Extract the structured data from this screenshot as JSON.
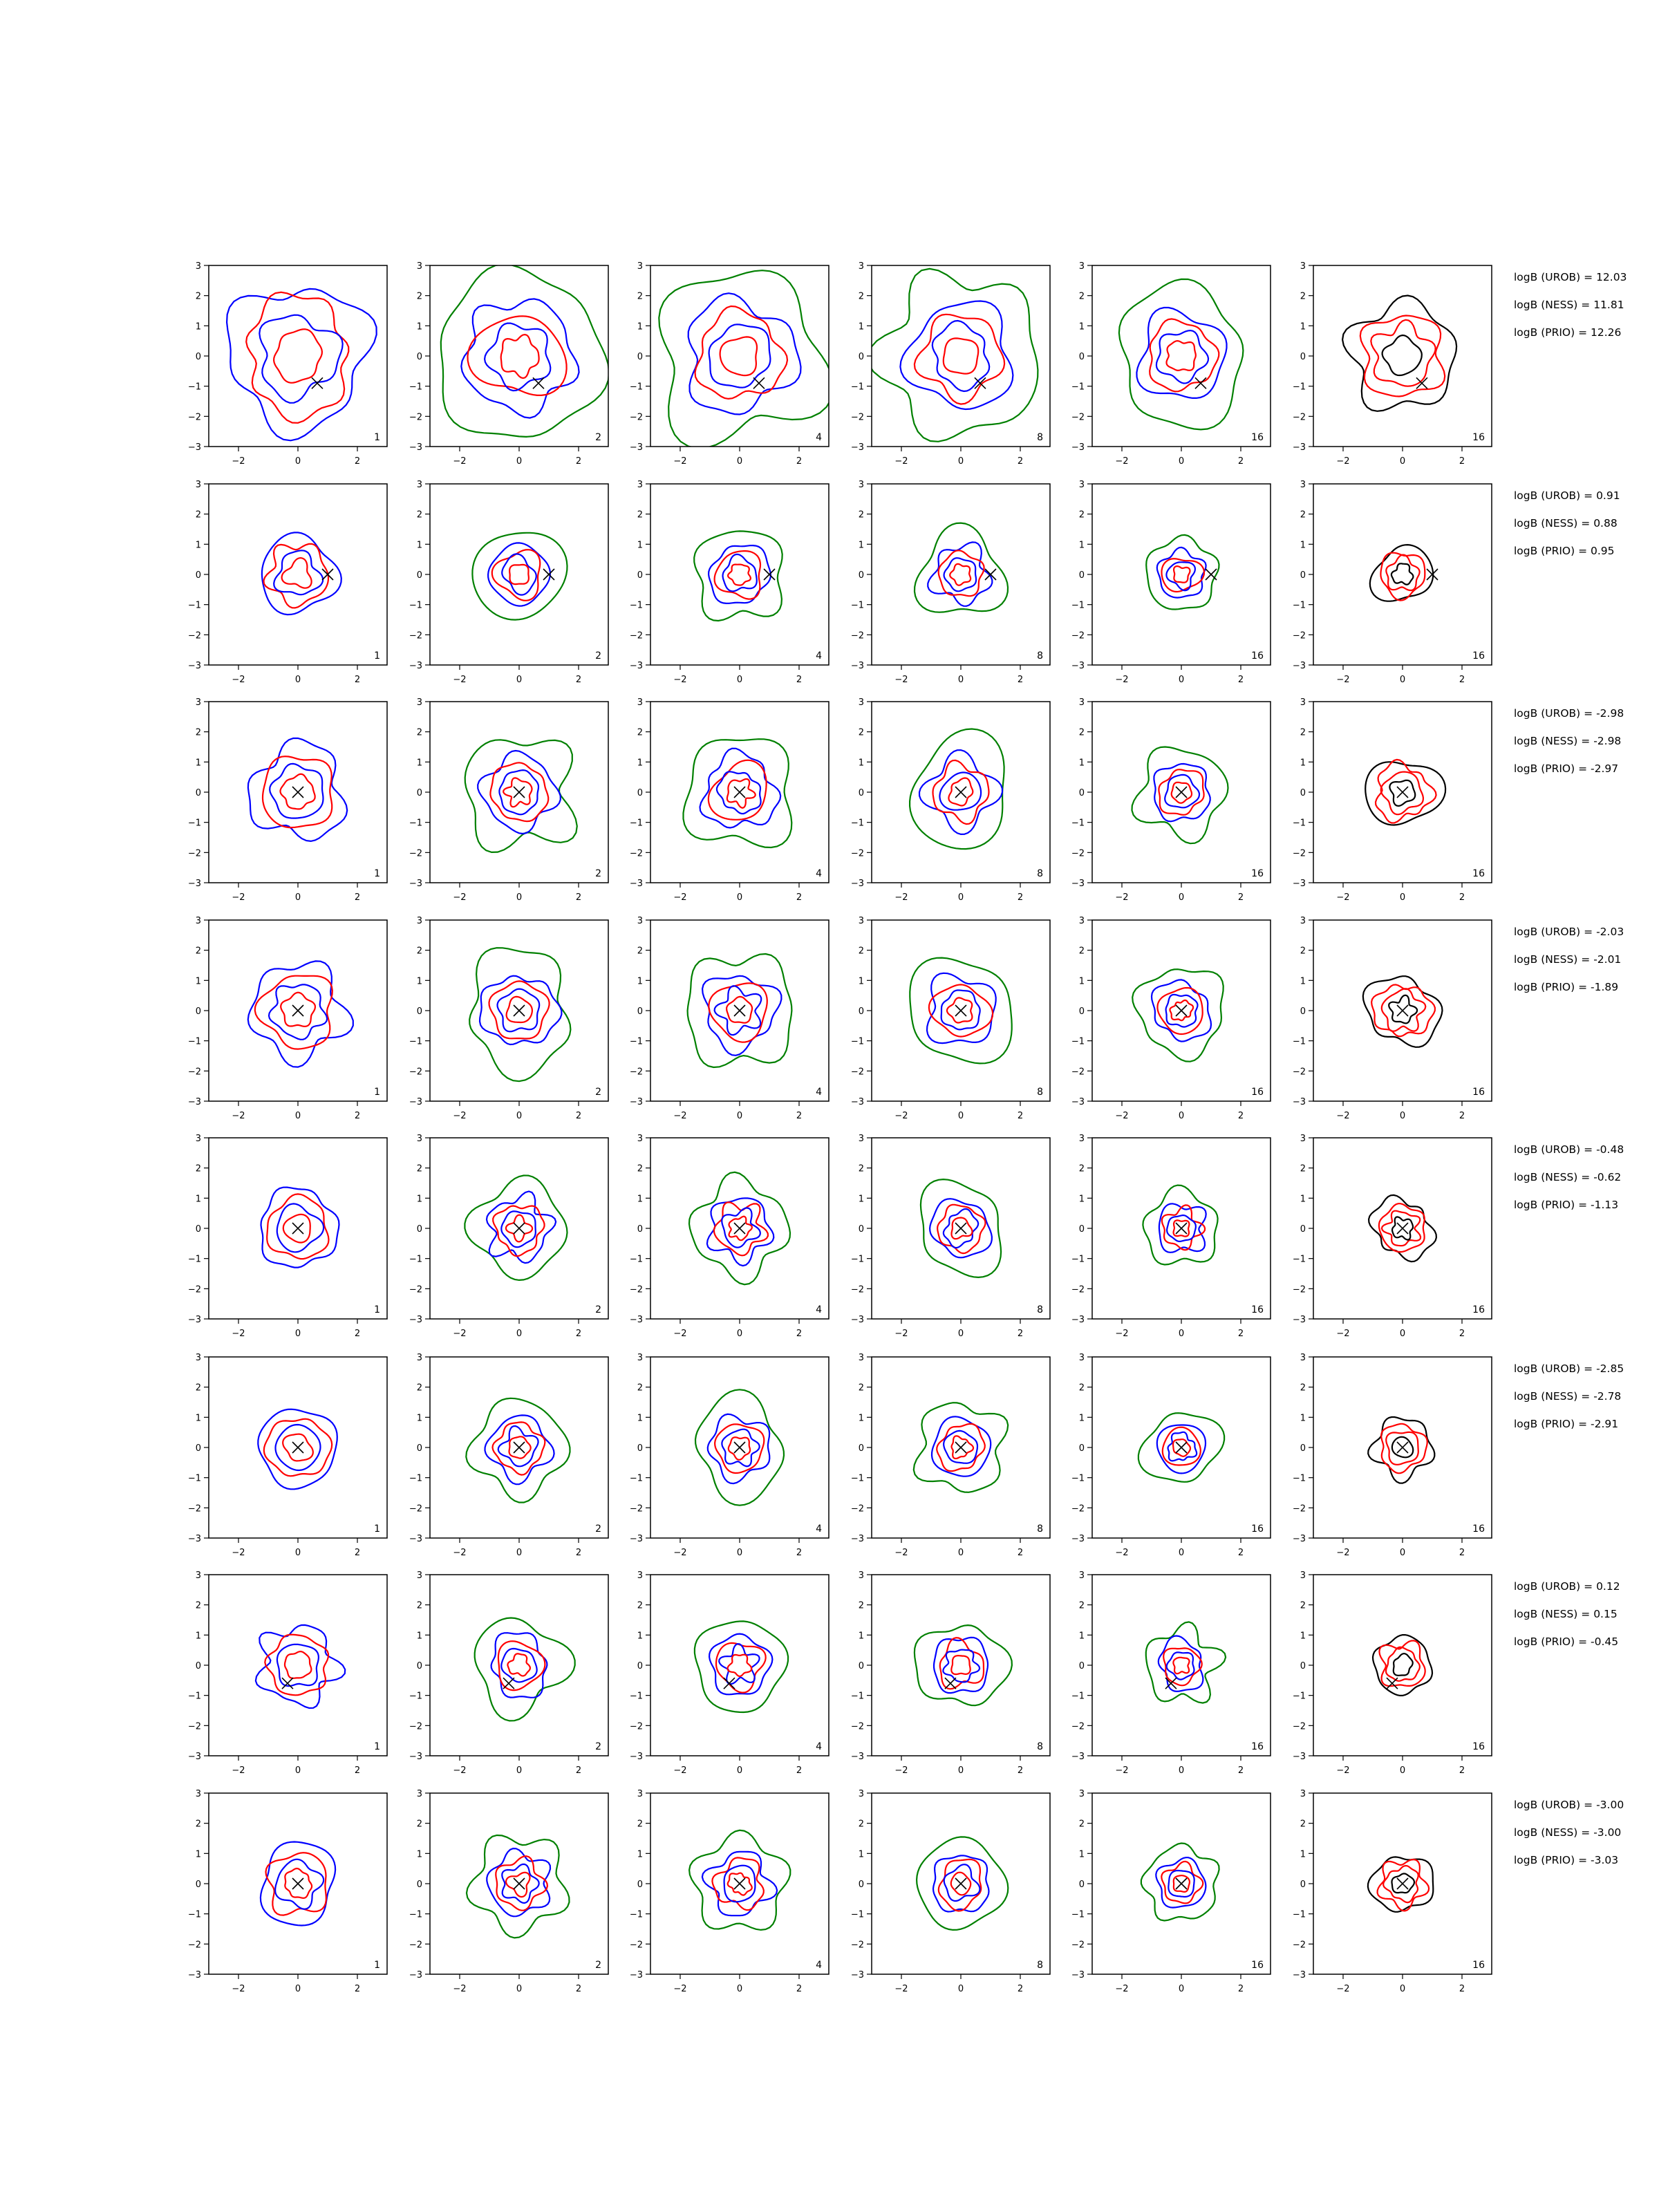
{
  "chart_data": {
    "type": "contour",
    "grid": "6 columns x 8 rows of contour panels",
    "xlim": [
      -3,
      3
    ],
    "ylim": [
      -3,
      3
    ],
    "xticks": [
      -2,
      0,
      2
    ],
    "yticks": [
      3,
      2,
      1,
      0,
      -1,
      -2,
      -3
    ],
    "grid_lines": false,
    "legend": "none",
    "line_colors": [
      "#0000ff",
      "#008000",
      "#ff0000",
      "#000000"
    ],
    "marker": "x",
    "column_labels": [
      "1",
      "2",
      "4",
      "8",
      "16",
      "16"
    ],
    "rows": [
      {
        "marker": [
          0.65,
          -0.9
        ],
        "annotations": [
          "logB (UROB) = 12.03",
          "logB (NESS) = 11.81",
          "logB (PRIO) = 12.26"
        ]
      },
      {
        "marker": [
          1.0,
          0.0
        ],
        "annotations": [
          "logB (UROB) = 0.91",
          "logB (NESS) = 0.88",
          "logB (PRIO) = 0.95"
        ]
      },
      {
        "marker": [
          0.0,
          0.0
        ],
        "annotations": [
          "logB (UROB) = -2.98",
          "logB (NESS) = -2.98",
          "logB (PRIO) = -2.97"
        ]
      },
      {
        "marker": [
          0.0,
          0.0
        ],
        "annotations": [
          "logB (UROB) = -2.03",
          "logB (NESS) = -2.01",
          "logB (PRIO) = -1.89"
        ]
      },
      {
        "marker": [
          0.0,
          0.0
        ],
        "annotations": [
          "logB (UROB) = -0.48",
          "logB (NESS) = -0.62",
          "logB (PRIO) = -1.13"
        ]
      },
      {
        "marker": [
          0.0,
          0.0
        ],
        "annotations": [
          "logB (UROB) = -2.85",
          "logB (NESS) = -2.78",
          "logB (PRIO) = -2.91"
        ]
      },
      {
        "marker": [
          -0.35,
          -0.6
        ],
        "annotations": [
          "logB (UROB) = 0.12",
          "logB (NESS) = 0.15",
          "logB (PRIO) = -0.45"
        ]
      },
      {
        "marker": [
          0.0,
          0.0
        ],
        "annotations": [
          "logB (UROB) = -3.00",
          "logB (NESS) = -3.00",
          "logB (PRIO) = -3.03"
        ]
      }
    ]
  }
}
